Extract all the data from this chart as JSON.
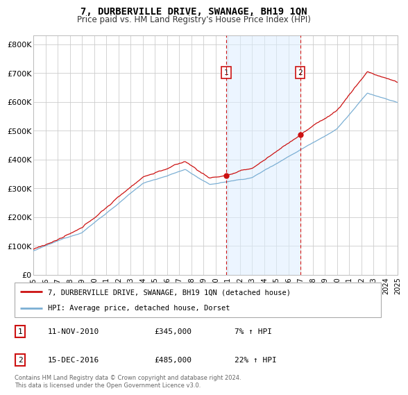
{
  "title": "7, DURBERVILLE DRIVE, SWANAGE, BH19 1QN",
  "subtitle": "Price paid vs. HM Land Registry's House Price Index (HPI)",
  "hpi_color": "#7bafd4",
  "price_color": "#cc1111",
  "dashed_color": "#cc1111",
  "bg_fill": "#ddeeff",
  "ylim": [
    0,
    830000
  ],
  "yticks": [
    0,
    100000,
    200000,
    300000,
    400000,
    500000,
    600000,
    700000,
    800000
  ],
  "ytick_labels": [
    "£0",
    "£100K",
    "£200K",
    "£300K",
    "£400K",
    "£500K",
    "£600K",
    "£700K",
    "£800K"
  ],
  "sale1_year": 2010.87,
  "sale1_price": 345000,
  "sale2_year": 2016.96,
  "sale2_price": 485000,
  "legend_line1": "7, DURBERVILLE DRIVE, SWANAGE, BH19 1QN (detached house)",
  "legend_line2": "HPI: Average price, detached house, Dorset",
  "footer": "Contains HM Land Registry data © Crown copyright and database right 2024.\nThis data is licensed under the Open Government Licence v3.0.",
  "xmin": 1995,
  "xmax": 2025,
  "seed": 12345
}
